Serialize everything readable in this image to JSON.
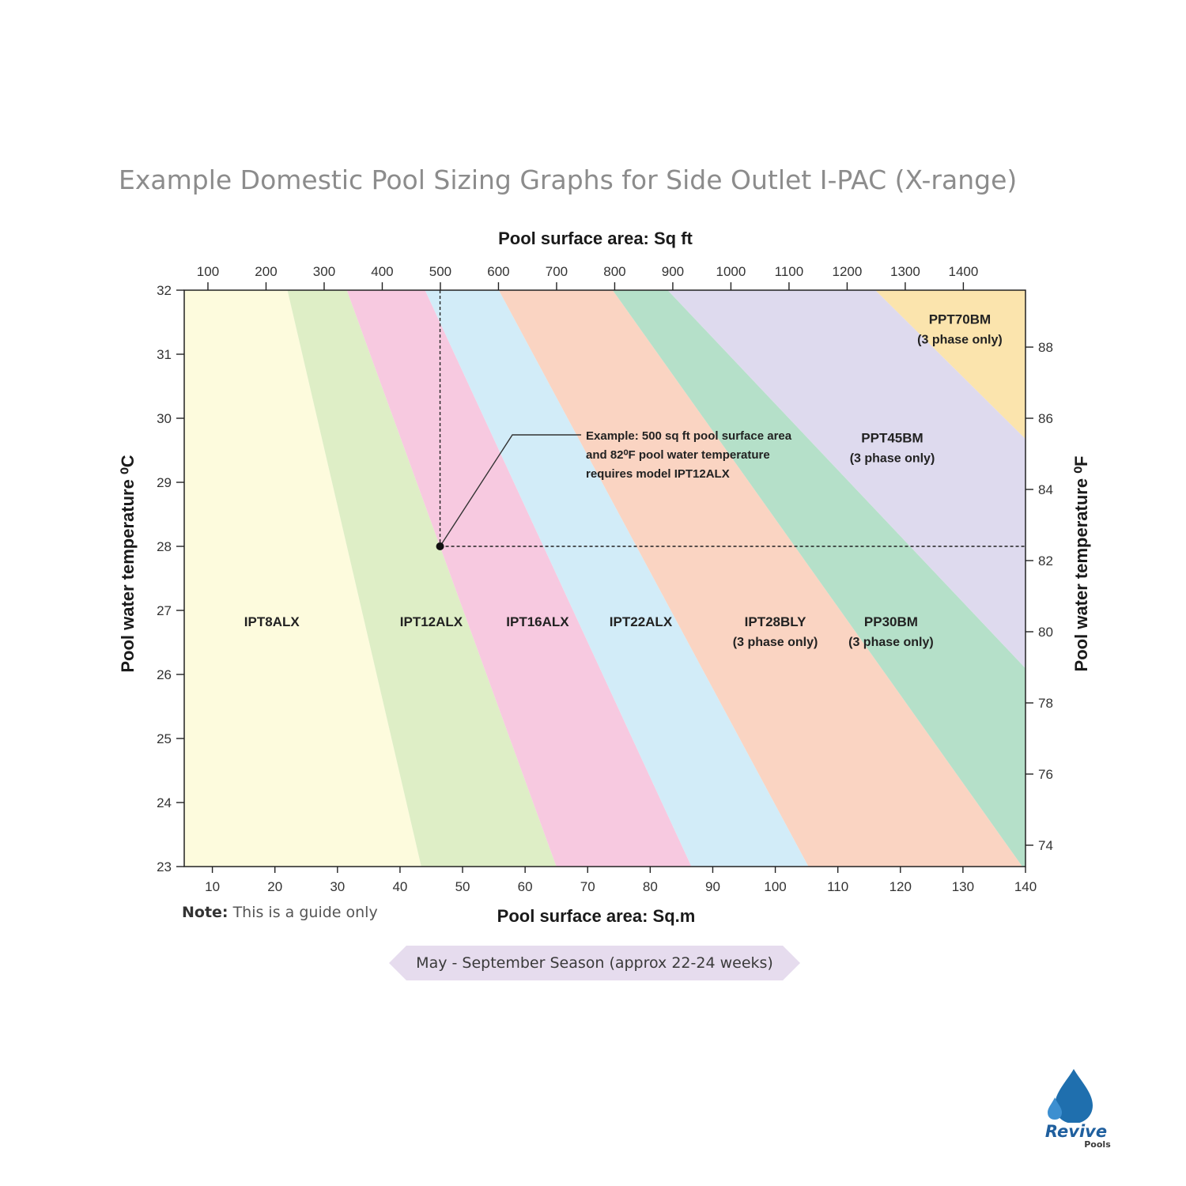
{
  "page": {
    "title": "Example Domestic Pool Sizing Graphs for Side Outlet I-PAC (X-range)",
    "note_bold": "Note:",
    "note_text": " This is a guide only",
    "season": "May - September Season (approx 22-24 weeks)",
    "logo_text": "Revive",
    "logo_subtext": "Pools"
  },
  "chart_data": {
    "type": "area",
    "x_top_label": "Pool surface area: Sq ft",
    "x_bottom_label": "Pool surface area: Sq.m",
    "y_left_label": "Pool water temperature ⁰C",
    "y_right_label": "Pool water temperature ⁰F",
    "x_sqm_range": [
      5.5,
      140
    ],
    "y_c_range": [
      23,
      32
    ],
    "x_bottom_ticks": [
      10,
      20,
      30,
      40,
      50,
      60,
      70,
      80,
      90,
      100,
      110,
      120,
      130,
      140
    ],
    "x_top_ticks": [
      100,
      200,
      300,
      400,
      500,
      600,
      700,
      800,
      900,
      1000,
      1100,
      1200,
      1300,
      1400
    ],
    "y_left_ticks": [
      23,
      24,
      25,
      26,
      27,
      28,
      29,
      30,
      31,
      32
    ],
    "y_right_ticks": [
      74,
      76,
      78,
      80,
      82,
      84,
      86,
      88
    ],
    "boundaries": [
      {
        "at_32C_sqm": 22.0,
        "at_23C_sqm": 43.4
      },
      {
        "at_32C_sqm": 31.5,
        "at_23C_sqm": 65.0
      },
      {
        "at_32C_sqm": 44.0,
        "at_23C_sqm": 86.6
      },
      {
        "at_32C_sqm": 55.8,
        "at_23C_sqm": 105.3
      },
      {
        "at_32C_sqm": 74.0,
        "at_23C_sqm": 139.5
      },
      {
        "at_32C_sqm": 82.8,
        "at_23C_sqm": 170.0
      },
      {
        "at_32C_sqm": 116.0,
        "at_23C_sqm": 209.0
      }
    ],
    "bands": [
      {
        "name": "IPT8ALX",
        "sub": "",
        "color": "#fdfbdd",
        "label_sqm": 19.5,
        "label_c": 26.83
      },
      {
        "name": "IPT12ALX",
        "sub": "",
        "color": "#deeec6",
        "label_sqm": 45.0,
        "label_c": 26.83
      },
      {
        "name": "IPT16ALX",
        "sub": "",
        "color": "#f7c9e0",
        "label_sqm": 62.0,
        "label_c": 26.83
      },
      {
        "name": "IPT22ALX",
        "sub": "",
        "color": "#d2ecf8",
        "label_sqm": 78.5,
        "label_c": 26.83
      },
      {
        "name": "IPT28BLY",
        "sub": "(3 phase only)",
        "color": "#fad4c2",
        "label_sqm": 100.0,
        "label_c": 26.83
      },
      {
        "name": "PP30BM",
        "sub": "(3 phase only)",
        "color": "#b5e0c9",
        "label_sqm": 118.5,
        "label_c": 26.83
      },
      {
        "name": "PPT45BM",
        "sub": "(3 phase only)",
        "color": "#dedaee",
        "label_sqm": 118.7,
        "label_c": 29.7
      },
      {
        "name": "PPT70BM",
        "sub": "(3 phase only)",
        "color": "#fbe4ad",
        "label_sqm": 129.5,
        "label_c": 31.55
      }
    ],
    "example": {
      "sqft": 500,
      "temp_f": 82,
      "point_sqm": 46.4,
      "point_c": 28.0,
      "line1": "Example: 500 sq ft pool surface area",
      "line2": "and 82⁰F pool water temperature",
      "line3": "requires model IPT12ALX"
    }
  }
}
